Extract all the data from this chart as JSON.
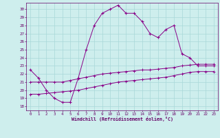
{
  "xlabel": "Windchill (Refroidissement éolien,°C)",
  "background_color": "#ceeeed",
  "grid_color": "#a8d8d8",
  "line_color": "#880088",
  "xlim": [
    -0.5,
    23.5
  ],
  "ylim": [
    17.5,
    30.8
  ],
  "yticks": [
    18,
    19,
    20,
    21,
    22,
    23,
    24,
    25,
    26,
    27,
    28,
    29,
    30
  ],
  "xticks": [
    0,
    1,
    2,
    3,
    4,
    5,
    6,
    7,
    8,
    9,
    10,
    11,
    12,
    13,
    14,
    15,
    16,
    17,
    18,
    19,
    20,
    21,
    22,
    23
  ],
  "series1_x": [
    0,
    1,
    2,
    3,
    4,
    5,
    6,
    7,
    8,
    9,
    10,
    11,
    12,
    13,
    14,
    15,
    16,
    17,
    18,
    19,
    20,
    21,
    22,
    23
  ],
  "series1_y": [
    22.5,
    21.5,
    20.0,
    19.0,
    18.5,
    18.5,
    21.5,
    25.0,
    28.0,
    29.5,
    30.0,
    30.5,
    29.5,
    29.5,
    28.5,
    27.0,
    26.5,
    27.5,
    28.0,
    24.5,
    24.0,
    23.0,
    23.0,
    23.0
  ],
  "series2_x": [
    0,
    1,
    2,
    3,
    4,
    5,
    6,
    7,
    8,
    9,
    10,
    11,
    12,
    13,
    14,
    15,
    16,
    17,
    18,
    19,
    20,
    21,
    22,
    23
  ],
  "series2_y": [
    21.0,
    21.0,
    21.0,
    21.0,
    21.0,
    21.2,
    21.4,
    21.6,
    21.8,
    22.0,
    22.1,
    22.2,
    22.3,
    22.4,
    22.5,
    22.5,
    22.6,
    22.7,
    22.8,
    23.0,
    23.1,
    23.2,
    23.2,
    23.2
  ],
  "series3_x": [
    0,
    1,
    2,
    3,
    4,
    5,
    6,
    7,
    8,
    9,
    10,
    11,
    12,
    13,
    14,
    15,
    16,
    17,
    18,
    19,
    20,
    21,
    22,
    23
  ],
  "series3_y": [
    19.5,
    19.5,
    19.6,
    19.7,
    19.8,
    19.9,
    20.0,
    20.2,
    20.4,
    20.6,
    20.8,
    21.0,
    21.1,
    21.2,
    21.3,
    21.4,
    21.5,
    21.6,
    21.8,
    22.0,
    22.2,
    22.3,
    22.3,
    22.3
  ]
}
